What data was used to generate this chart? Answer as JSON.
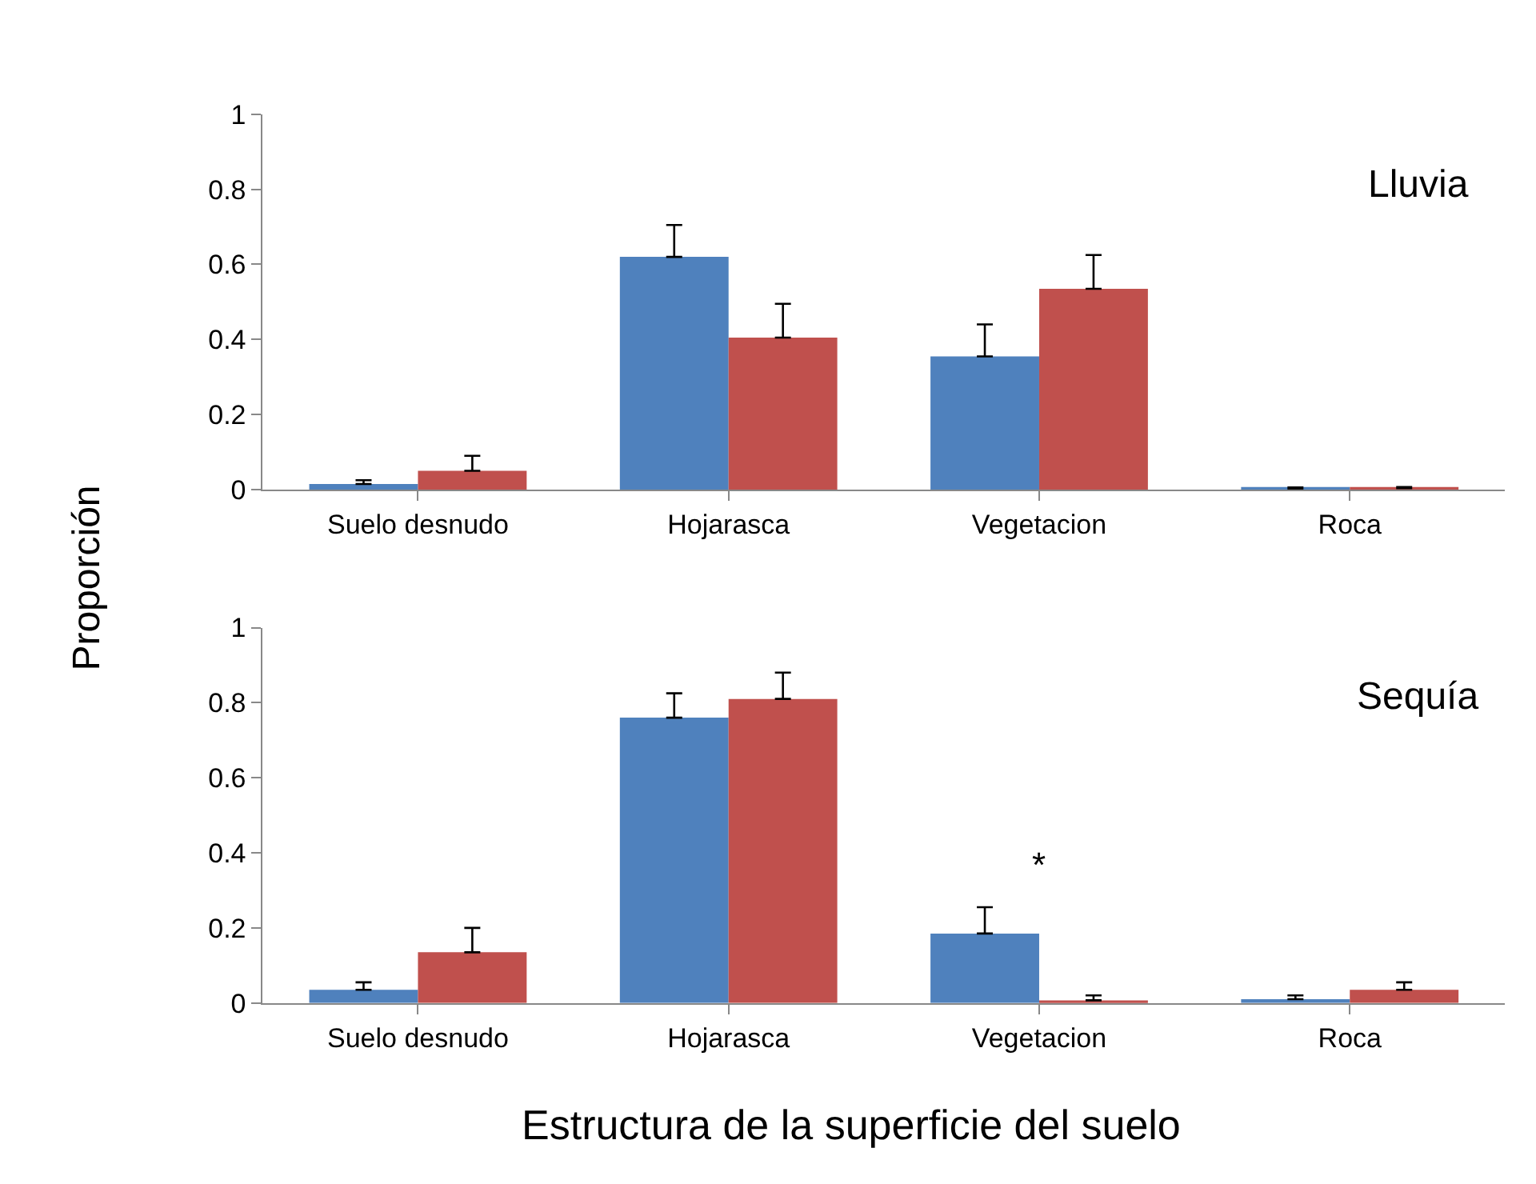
{
  "chart_data": [
    {
      "type": "bar",
      "categories": [
        "Suelo desnudo",
        "Hojarasca",
        "Vegetacion",
        "Roca"
      ],
      "ylabel": "Proporción",
      "ylim": [
        0,
        1
      ],
      "yticks": [
        0,
        0.2,
        0.4,
        0.6,
        0.8,
        1
      ],
      "annotations": [
        "Lluvia"
      ],
      "series": [
        {
          "color": "#4f81bd",
          "values": [
            0.015,
            0.62,
            0.355,
            0.003
          ],
          "errors": [
            [
              0.015,
              0.025
            ],
            [
              0.62,
              0.705
            ],
            [
              0.355,
              0.44
            ],
            [
              0.003,
              0.006
            ]
          ]
        },
        {
          "color": "#c0504d",
          "values": [
            0.05,
            0.405,
            0.535,
            0.004
          ],
          "errors": [
            [
              0.05,
              0.09
            ],
            [
              0.405,
              0.495
            ],
            [
              0.535,
              0.625
            ],
            [
              0.004,
              0.007
            ]
          ]
        }
      ]
    },
    {
      "type": "bar",
      "categories": [
        "Suelo desnudo",
        "Hojarasca",
        "Vegetacion",
        "Roca"
      ],
      "xlabel": "Estructura de la superficie del suelo",
      "ylim": [
        0,
        1
      ],
      "yticks": [
        0,
        0.2,
        0.4,
        0.6,
        0.8,
        1
      ],
      "annotations": [
        "Sequía",
        "*"
      ],
      "series": [
        {
          "color": "#4f81bd",
          "values": [
            0.035,
            0.76,
            0.185,
            0.01
          ],
          "errors": [
            [
              0.035,
              0.055
            ],
            [
              0.76,
              0.825
            ],
            [
              0.185,
              0.255
            ],
            [
              0.01,
              0.02
            ]
          ]
        },
        {
          "color": "#c0504d",
          "values": [
            0.135,
            0.81,
            0.007,
            0.035
          ],
          "errors": [
            [
              0.135,
              0.2
            ],
            [
              0.81,
              0.88
            ],
            [
              0.007,
              0.02
            ],
            [
              0.035,
              0.055
            ]
          ]
        }
      ]
    }
  ]
}
